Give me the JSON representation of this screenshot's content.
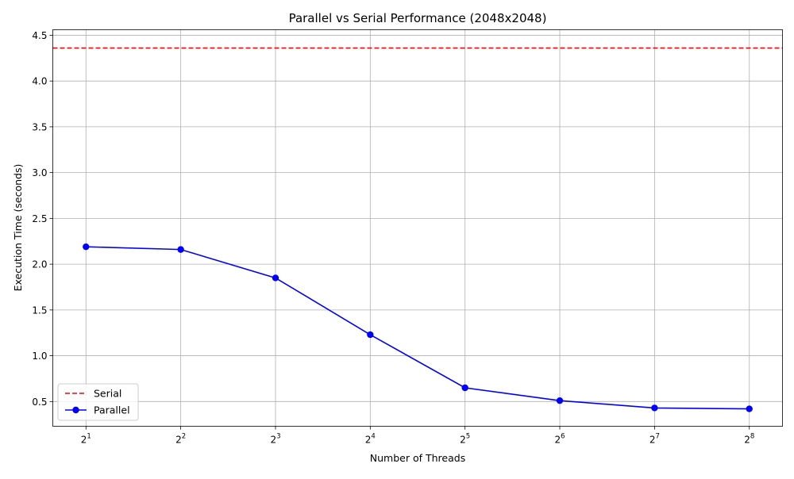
{
  "chart_data": {
    "type": "line",
    "title": "Parallel vs Serial Performance (2048x2048)",
    "xlabel": "Number of Threads",
    "ylabel": "Execution Time (seconds)",
    "x_scale": "log2",
    "x": [
      2,
      4,
      8,
      16,
      32,
      64,
      128,
      256
    ],
    "xtick_labels": [
      {
        "base": "2",
        "exp": "1"
      },
      {
        "base": "2",
        "exp": "2"
      },
      {
        "base": "2",
        "exp": "3"
      },
      {
        "base": "2",
        "exp": "4"
      },
      {
        "base": "2",
        "exp": "5"
      },
      {
        "base": "2",
        "exp": "6"
      },
      {
        "base": "2",
        "exp": "7"
      },
      {
        "base": "2",
        "exp": "8"
      }
    ],
    "ylim": [
      0.23,
      4.56
    ],
    "yticks": [
      0.5,
      1.0,
      1.5,
      2.0,
      2.5,
      3.0,
      3.5,
      4.0,
      4.5
    ],
    "ytick_labels": [
      "0.5",
      "1.0",
      "1.5",
      "2.0",
      "2.5",
      "3.0",
      "3.5",
      "4.0",
      "4.5"
    ],
    "grid": true,
    "legend_position": "lower-left",
    "series": [
      {
        "name": "Serial",
        "kind": "hline",
        "value": 4.36,
        "color": "#ff0000",
        "style": "dashed"
      },
      {
        "name": "Parallel",
        "kind": "line",
        "values": [
          2.19,
          2.16,
          1.85,
          1.23,
          0.65,
          0.51,
          0.43,
          0.42
        ],
        "color": "#0000ff",
        "marker": "circle"
      }
    ]
  }
}
